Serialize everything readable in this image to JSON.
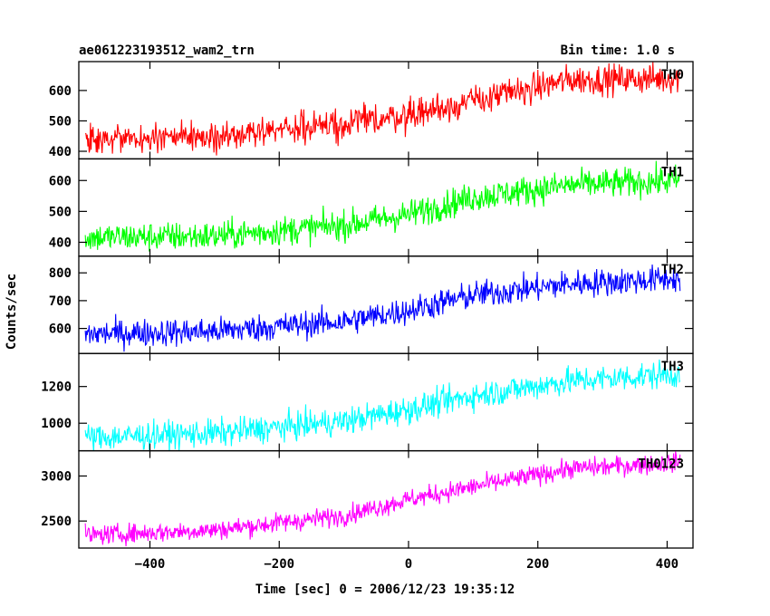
{
  "header": {
    "title": "ae061223193512_wam2_trn",
    "bin_time": "Bin time: 1.0 s"
  },
  "chart_data": {
    "type": "line",
    "xlabel": "Time [sec] 0 = 2006/12/23 19:35:12",
    "ylabel": "Counts/sec",
    "xlim": [
      -510,
      440
    ],
    "x_range": [
      -500,
      420
    ],
    "x_ticks": [
      -400,
      -200,
      0,
      200,
      400
    ],
    "x_tick_labels": [
      "−400",
      "−200",
      "0",
      "200",
      "400"
    ],
    "panels": [
      {
        "name": "TH0",
        "color": "#ff0000",
        "ylim": [
          375,
          695
        ],
        "y_ticks": [
          400,
          500,
          600
        ],
        "trend": [
          [
            -500,
            440
          ],
          [
            -300,
            445
          ],
          [
            -100,
            490
          ],
          [
            0,
            520
          ],
          [
            100,
            565
          ],
          [
            250,
            635
          ],
          [
            420,
            640
          ]
        ],
        "noise": 25
      },
      {
        "name": "TH1",
        "color": "#00ff00",
        "ylim": [
          355,
          670
        ],
        "y_ticks": [
          400,
          500,
          600
        ],
        "trend": [
          [
            -500,
            415
          ],
          [
            -300,
            420
          ],
          [
            -100,
            455
          ],
          [
            0,
            490
          ],
          [
            100,
            545
          ],
          [
            250,
            585
          ],
          [
            420,
            600
          ]
        ],
        "noise": 24
      },
      {
        "name": "TH2",
        "color": "#0000ff",
        "ylim": [
          510,
          860
        ],
        "y_ticks": [
          600,
          700,
          800
        ],
        "trend": [
          [
            -500,
            580
          ],
          [
            -300,
            590
          ],
          [
            -100,
            625
          ],
          [
            0,
            665
          ],
          [
            100,
            720
          ],
          [
            250,
            760
          ],
          [
            420,
            780
          ]
        ],
        "noise": 25
      },
      {
        "name": "TH3",
        "color": "#00ffff",
        "ylim": [
          850,
          1380
        ],
        "y_ticks": [
          1000,
          1200
        ],
        "trend": [
          [
            -500,
            920
          ],
          [
            -300,
            945
          ],
          [
            -100,
            1010
          ],
          [
            0,
            1075
          ],
          [
            100,
            1150
          ],
          [
            250,
            1230
          ],
          [
            420,
            1270
          ]
        ],
        "noise": 38
      },
      {
        "name": "TH0123",
        "color": "#ff00ff",
        "ylim": [
          2200,
          3280
        ],
        "y_ticks": [
          2500,
          3000
        ],
        "trend": [
          [
            -500,
            2340
          ],
          [
            -300,
            2400
          ],
          [
            -100,
            2560
          ],
          [
            0,
            2740
          ],
          [
            100,
            2880
          ],
          [
            250,
            3080
          ],
          [
            420,
            3150
          ]
        ],
        "noise": 55
      }
    ]
  }
}
